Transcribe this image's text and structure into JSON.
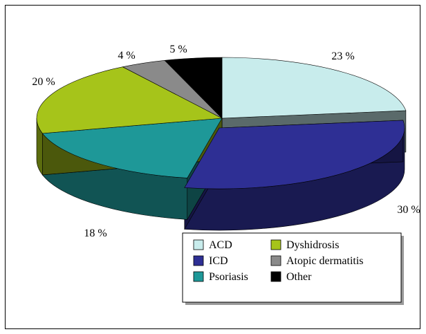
{
  "chart_data": {
    "type": "pie",
    "style": "3d-exploded-pie",
    "title": "",
    "slices": [
      {
        "name": "ACD",
        "value": 23,
        "label": "23 %",
        "color": "#c8ecec"
      },
      {
        "name": "ICD",
        "value": 30,
        "label": "30 %",
        "color": "#2e2f94"
      },
      {
        "name": "Psoriasis",
        "value": 18,
        "label": "18 %",
        "color": "#1e9898"
      },
      {
        "name": "Dyshidrosis",
        "value": 20,
        "label": "20 %",
        "color": "#a6c41a"
      },
      {
        "name": "Atopic dermatitis",
        "value": 4,
        "label": "4 %",
        "color": "#8a8a8a"
      },
      {
        "name": "Other",
        "value": 5,
        "label": "5 %",
        "color": "#000000"
      }
    ],
    "legend": {
      "position": "bottom-right",
      "columns": 2,
      "entries": [
        "ACD",
        "Dyshidrosis",
        "ICD",
        "Atopic dermatitis",
        "Psoriasis",
        "Other"
      ]
    }
  }
}
